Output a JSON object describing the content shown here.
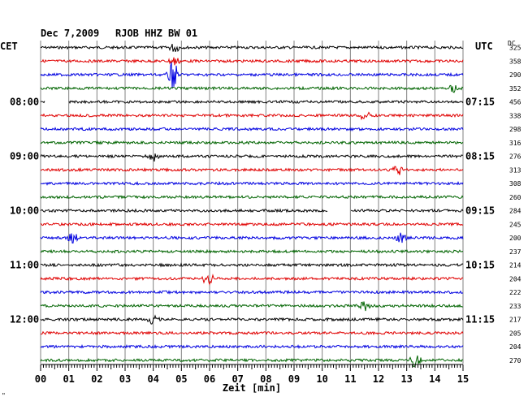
{
  "header": {
    "date": "Dec 7,2009",
    "station": "RJOB HHZ BW 01",
    "left_tz": "CET",
    "right_tz": "UTC",
    "dc_label": "DC",
    "x_axis_label": "Zeit [min]",
    "corner_mark": "\""
  },
  "colors": {
    "trace_cycle": [
      "#000000",
      "#e00000",
      "#0000e0",
      "#006400"
    ],
    "grid": "#808080",
    "background": "#ffffff"
  },
  "chart_data": {
    "type": "line",
    "title": "Dec 7,2009   RJOB HHZ BW 01",
    "xlabel": "Zeit [min]",
    "ylabel": "",
    "xlim": [
      0,
      15
    ],
    "x_ticks": [
      "00",
      "01",
      "02",
      "03",
      "04",
      "05",
      "06",
      "07",
      "08",
      "09",
      "10",
      "11",
      "12",
      "13",
      "14",
      "15"
    ],
    "left_time_labels": [
      "08:00",
      "09:00",
      "10:00",
      "11:00",
      "12:00"
    ],
    "right_time_labels": [
      "07:15",
      "08:15",
      "09:15",
      "10:15",
      "11:15"
    ],
    "time_label_trace_index": [
      4,
      8,
      12,
      16,
      20
    ],
    "trace_count": 24,
    "dc_values": [
      "325",
      "358",
      "290",
      "352",
      "456",
      "338",
      "298",
      "316",
      "276",
      "313",
      "308",
      "260",
      "284",
      "245",
      "200",
      "237",
      "214",
      "204",
      "222",
      "233",
      "217",
      "205",
      "204",
      "270"
    ],
    "events": [
      {
        "trace": 0,
        "minute": 4.75,
        "amplitude": "small"
      },
      {
        "trace": 1,
        "minute": 4.75,
        "amplitude": "small"
      },
      {
        "trace": 2,
        "minute": 4.7,
        "amplitude": "large"
      },
      {
        "trace": 3,
        "minute": 14.7,
        "amplitude": "small"
      },
      {
        "trace": 5,
        "minute": 11.5,
        "amplitude": "small"
      },
      {
        "trace": 8,
        "minute": 4.0,
        "amplitude": "small"
      },
      {
        "trace": 9,
        "minute": 12.7,
        "amplitude": "small"
      },
      {
        "trace": 14,
        "minute": 1.15,
        "amplitude": "small"
      },
      {
        "trace": 14,
        "minute": 12.8,
        "amplitude": "small"
      },
      {
        "trace": 17,
        "minute": 5.95,
        "amplitude": "medium"
      },
      {
        "trace": 19,
        "minute": 11.5,
        "amplitude": "small"
      },
      {
        "trace": 20,
        "minute": 4.0,
        "amplitude": "small"
      },
      {
        "trace": 23,
        "minute": 13.3,
        "amplitude": "medium"
      }
    ],
    "gaps": [
      {
        "trace": 4,
        "from_minute": 0.15,
        "to_minute": 1.0
      },
      {
        "trace": 12,
        "from_minute": 10.2,
        "to_minute": 11.0
      }
    ]
  }
}
